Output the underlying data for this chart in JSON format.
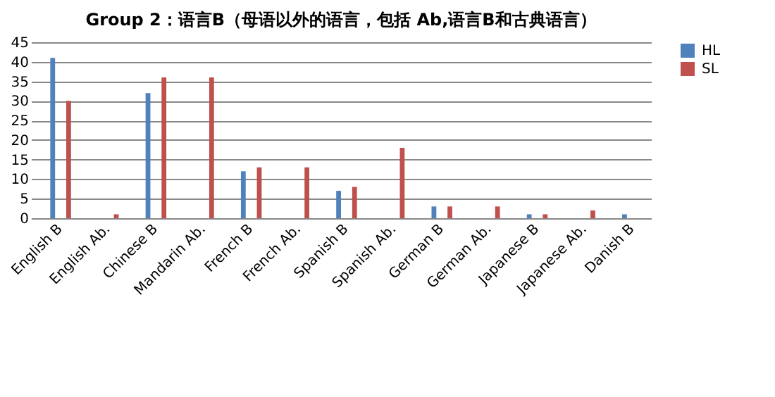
{
  "chart_data": {
    "type": "bar",
    "title": "Group 2：语言B（母语以外的语言，包括  Ab,语言B和古典语言）",
    "categories": [
      "English B",
      "English Ab.",
      "Chinese B",
      "Mandarin Ab.",
      "French B",
      "French Ab.",
      "Spanish B",
      "Spanish Ab.",
      "German B",
      "German Ab.",
      "Japanese B",
      "Japanese Ab.",
      "Danish B"
    ],
    "series": [
      {
        "name": "HL",
        "color": "#4f81bd",
        "values": [
          41,
          null,
          32,
          null,
          12,
          null,
          7,
          null,
          3,
          null,
          1,
          null,
          1
        ]
      },
      {
        "name": "SL",
        "color": "#c0504d",
        "values": [
          30,
          1,
          36,
          36,
          13,
          13,
          8,
          18,
          3,
          3,
          1,
          2,
          null
        ]
      }
    ],
    "ylim": [
      0,
      45
    ],
    "yticks": [
      0,
      5,
      10,
      15,
      20,
      25,
      30,
      35,
      40,
      45
    ],
    "grid": "y",
    "legend": "right"
  }
}
